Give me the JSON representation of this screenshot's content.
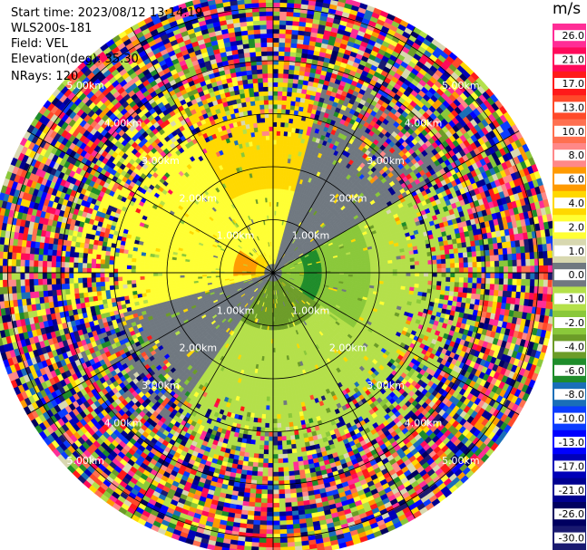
{
  "info": {
    "start_time": "Start time: 2023/08/12 13:14:19",
    "site": "WLS200s-181",
    "field": "Field: VEL",
    "elevation": "Elevation(deg): 35.30",
    "nrays": "NRays: 120"
  },
  "chart_data": {
    "type": "ppi_radar",
    "field": "VEL",
    "elevation_deg": 35.3,
    "n_rays": 120,
    "range_rings_km": [
      1,
      2,
      3,
      4,
      5
    ],
    "ring_labels": [
      "1.00km",
      "2.00km",
      "3.00km",
      "4.00km",
      "5.00km"
    ],
    "max_range_km": 5.35,
    "colorbar": {
      "unit": "m/s",
      "ticks": [
        "26.0",
        "21.0",
        "17.0",
        "13.0",
        "10.0",
        "8.0",
        "6.0",
        "4.0",
        "2.0",
        "1.0",
        "0.0",
        "-1.0",
        "-2.0",
        "-4.0",
        "-6.0",
        "-8.0",
        "-10.0",
        "-13.0",
        "-17.0",
        "-21.0",
        "-26.0",
        "-30.0"
      ],
      "colors": [
        "#ff2d96",
        "#ff0a5a",
        "#ff1a1a",
        "#ff4a2a",
        "#ff7050",
        "#ff8888",
        "#ff9a00",
        "#ffd800",
        "#ffff33",
        "#d8d8b0",
        "#707880",
        "#b4e04a",
        "#8ac83a",
        "#6c9c28",
        "#1e8c2a",
        "#1a6fb8",
        "#0a3cff",
        "#0000ff",
        "#0000b8",
        "#000090",
        "#000060",
        "#191970"
      ]
    }
  }
}
